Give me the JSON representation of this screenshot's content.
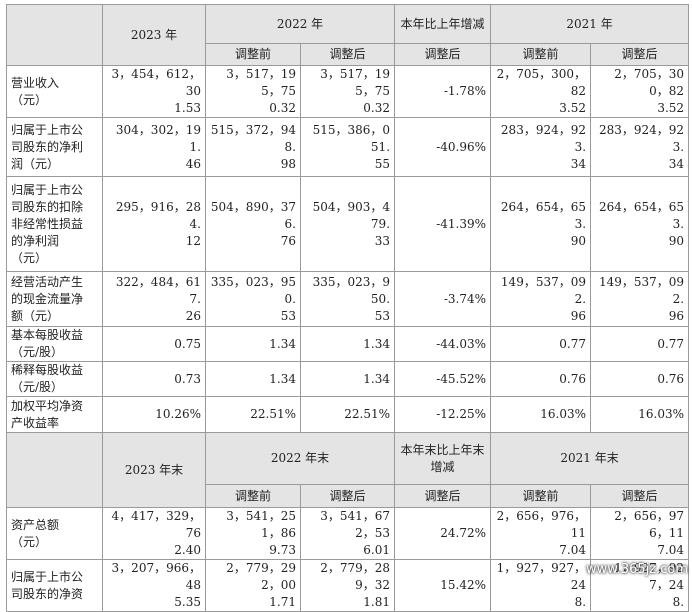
{
  "header1": {
    "y2023": "2023 年",
    "y2022": "2022 年",
    "change": "本年比上年增减",
    "y2021": "2021 年",
    "before": "调整前",
    "after": "调整后",
    "change_after": "调整后"
  },
  "rows1": [
    {
      "label": [
        "营业收入",
        "（元）"
      ],
      "v2023": [
        "3，454，612，30",
        "1.53"
      ],
      "b2022": [
        "3，517，195，75",
        "0.32"
      ],
      "a2022": [
        "3，517，195，75",
        "0.32"
      ],
      "chg": "-1.78%",
      "b2021": [
        "2，705，300，82",
        "3.52"
      ],
      "a2021": [
        "2，705，300，82",
        "3.52"
      ]
    },
    {
      "label": [
        "归属于上市公",
        "司股东的净利",
        "润（元）"
      ],
      "v2023": [
        "304，302，191.",
        "46"
      ],
      "b2022": [
        "515，372，948.",
        "98"
      ],
      "a2022": [
        "515，386，051.",
        "55"
      ],
      "chg": "-40.96%",
      "b2021": [
        "283，924，923.",
        "34"
      ],
      "a2021": [
        "283，924，923.",
        "34"
      ]
    },
    {
      "label": [
        "归属于上市公",
        "司股东的扣除",
        "非经常性损益",
        "的净利润",
        "（元）"
      ],
      "v2023": [
        "295，916，284.",
        "12"
      ],
      "b2022": [
        "504，890，376.",
        "76"
      ],
      "a2022": [
        "504，903，479.",
        "33"
      ],
      "chg": "-41.39%",
      "b2021": [
        "264，654，653.",
        "90"
      ],
      "a2021": [
        "264，654，653.",
        "90"
      ]
    },
    {
      "label": [
        "经营活动产生",
        "的现金流量净",
        "额（元）"
      ],
      "v2023": [
        "322，484，617.",
        "26"
      ],
      "b2022": [
        "335，023，950.",
        "53"
      ],
      "a2022": [
        "335，023，950.",
        "53"
      ],
      "chg": "-3.74%",
      "b2021": [
        "149，537，092.",
        "96"
      ],
      "a2021": [
        "149，537，092.",
        "96"
      ]
    },
    {
      "label": [
        "基本每股收益",
        "（元/股）"
      ],
      "v2023": [
        "0.75"
      ],
      "b2022": [
        "1.34"
      ],
      "a2022": [
        "1.34"
      ],
      "chg": "-44.03%",
      "b2021": [
        "0.77"
      ],
      "a2021": [
        "0.77"
      ]
    },
    {
      "label": [
        "稀释每股收益",
        "（元/股）"
      ],
      "v2023": [
        "0.73"
      ],
      "b2022": [
        "1.34"
      ],
      "a2022": [
        "1.34"
      ],
      "chg": "-45.52%",
      "b2021": [
        "0.76"
      ],
      "a2021": [
        "0.76"
      ]
    },
    {
      "label": [
        "加权平均净资",
        "产收益率"
      ],
      "v2023": [
        "10.26%"
      ],
      "b2022": [
        "22.51%"
      ],
      "a2022": [
        "22.51%"
      ],
      "chg": "-12.25%",
      "b2021": [
        "16.03%"
      ],
      "a2021": [
        "16.03%"
      ]
    }
  ],
  "header2": {
    "y2023": "2023 年末",
    "y2022": "2022 年末",
    "change": "本年末比上年末增减",
    "y2021": "2021 年末",
    "before": "调整前",
    "after": "调整后",
    "change_after": "调整后"
  },
  "rows2": [
    {
      "label": [
        "资产总额",
        "（元）"
      ],
      "v2023": [
        "4，417，329，76",
        "2.40"
      ],
      "b2022": [
        "3，541，251，86",
        "9.73"
      ],
      "a2022": [
        "3，541，672，53",
        "6.01"
      ],
      "chg": "24.72%",
      "b2021": [
        "2，656，976，11",
        "7.04"
      ],
      "a2021": [
        "2，656，976，11",
        "7.04"
      ]
    },
    {
      "label": [
        "归属于上市公",
        "司股东的净资"
      ],
      "v2023": [
        "3，207，966，48",
        "5.35"
      ],
      "b2022": [
        "2，779，292，00",
        "1.71"
      ],
      "a2022": [
        "2，779，289，32",
        "1.81"
      ],
      "chg": "15.42%",
      "b2021": [
        "1，927，927，24",
        "8."
      ],
      "a2021": [
        "1，927，927，24",
        "8."
      ]
    }
  ],
  "watermark": "www.365jz.com"
}
